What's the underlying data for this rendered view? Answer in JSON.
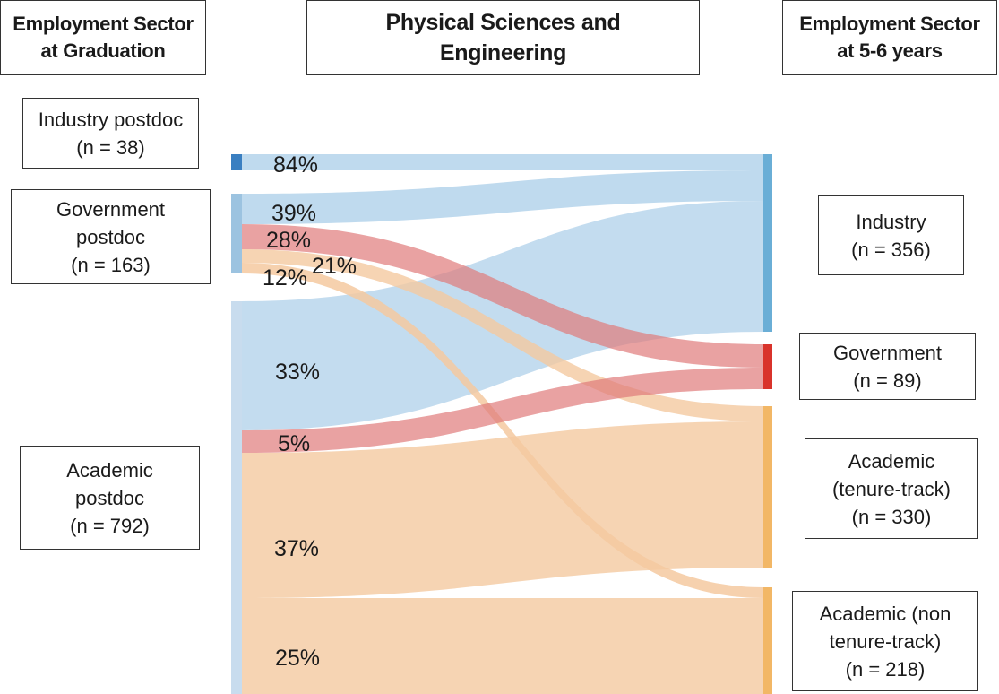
{
  "headers": {
    "left": [
      "Employment Sector",
      "at Graduation"
    ],
    "center": [
      "Physical Sciences and",
      "Engineering"
    ],
    "right": [
      "Employment Sector",
      "at 5-6 years"
    ]
  },
  "sources": [
    {
      "id": "industry-postdoc",
      "lines": [
        "Industry postdoc",
        "(n = 38)"
      ],
      "n": 38
    },
    {
      "id": "government-postdoc",
      "lines": [
        "Government",
        "postdoc",
        "(n = 163)"
      ],
      "n": 163
    },
    {
      "id": "academic-postdoc",
      "lines": [
        "Academic",
        "postdoc",
        "(n = 792)"
      ],
      "n": 792
    }
  ],
  "targets": [
    {
      "id": "industry",
      "lines": [
        "Industry",
        "(n = 356)"
      ],
      "n": 356
    },
    {
      "id": "government",
      "lines": [
        "Government",
        "(n = 89)"
      ],
      "n": 89
    },
    {
      "id": "academic-tenure-track",
      "lines": [
        "Academic",
        "(tenure-track)",
        "(n = 330)"
      ],
      "n": 330
    },
    {
      "id": "academic-non-tenure-track",
      "lines": [
        "Academic (non",
        "tenure-track)",
        "(n = 218)"
      ],
      "n": 218
    }
  ],
  "colors": {
    "industry": "#6aaed6",
    "government": "#d9332b",
    "academic": "#f2b766",
    "industry_postdoc_bar": "#3a7fc1",
    "government_postdoc_bar": "#9cc3e0",
    "academic_postdoc_bar": "#c8dcee",
    "flow_industry": "#a9cde8",
    "flow_government": "#e07b7b",
    "flow_academic": "#f4c9a0"
  },
  "chart_data": {
    "type": "sankey",
    "flows": [
      {
        "source": "industry-postdoc",
        "target": "industry",
        "label": "84%"
      },
      {
        "source": "government-postdoc",
        "target": "industry",
        "label": "39%"
      },
      {
        "source": "government-postdoc",
        "target": "government",
        "label": "28%"
      },
      {
        "source": "government-postdoc",
        "target": "academic-tenure-track",
        "label": "21%"
      },
      {
        "source": "government-postdoc",
        "target": "academic-non-tenure-track",
        "label": "12%"
      },
      {
        "source": "academic-postdoc",
        "target": "industry",
        "label": "33%"
      },
      {
        "source": "academic-postdoc",
        "target": "government",
        "label": "5%"
      },
      {
        "source": "academic-postdoc",
        "target": "academic-tenure-track",
        "label": "37%"
      },
      {
        "source": "academic-postdoc",
        "target": "academic-non-tenure-track",
        "label": "25%"
      }
    ]
  }
}
